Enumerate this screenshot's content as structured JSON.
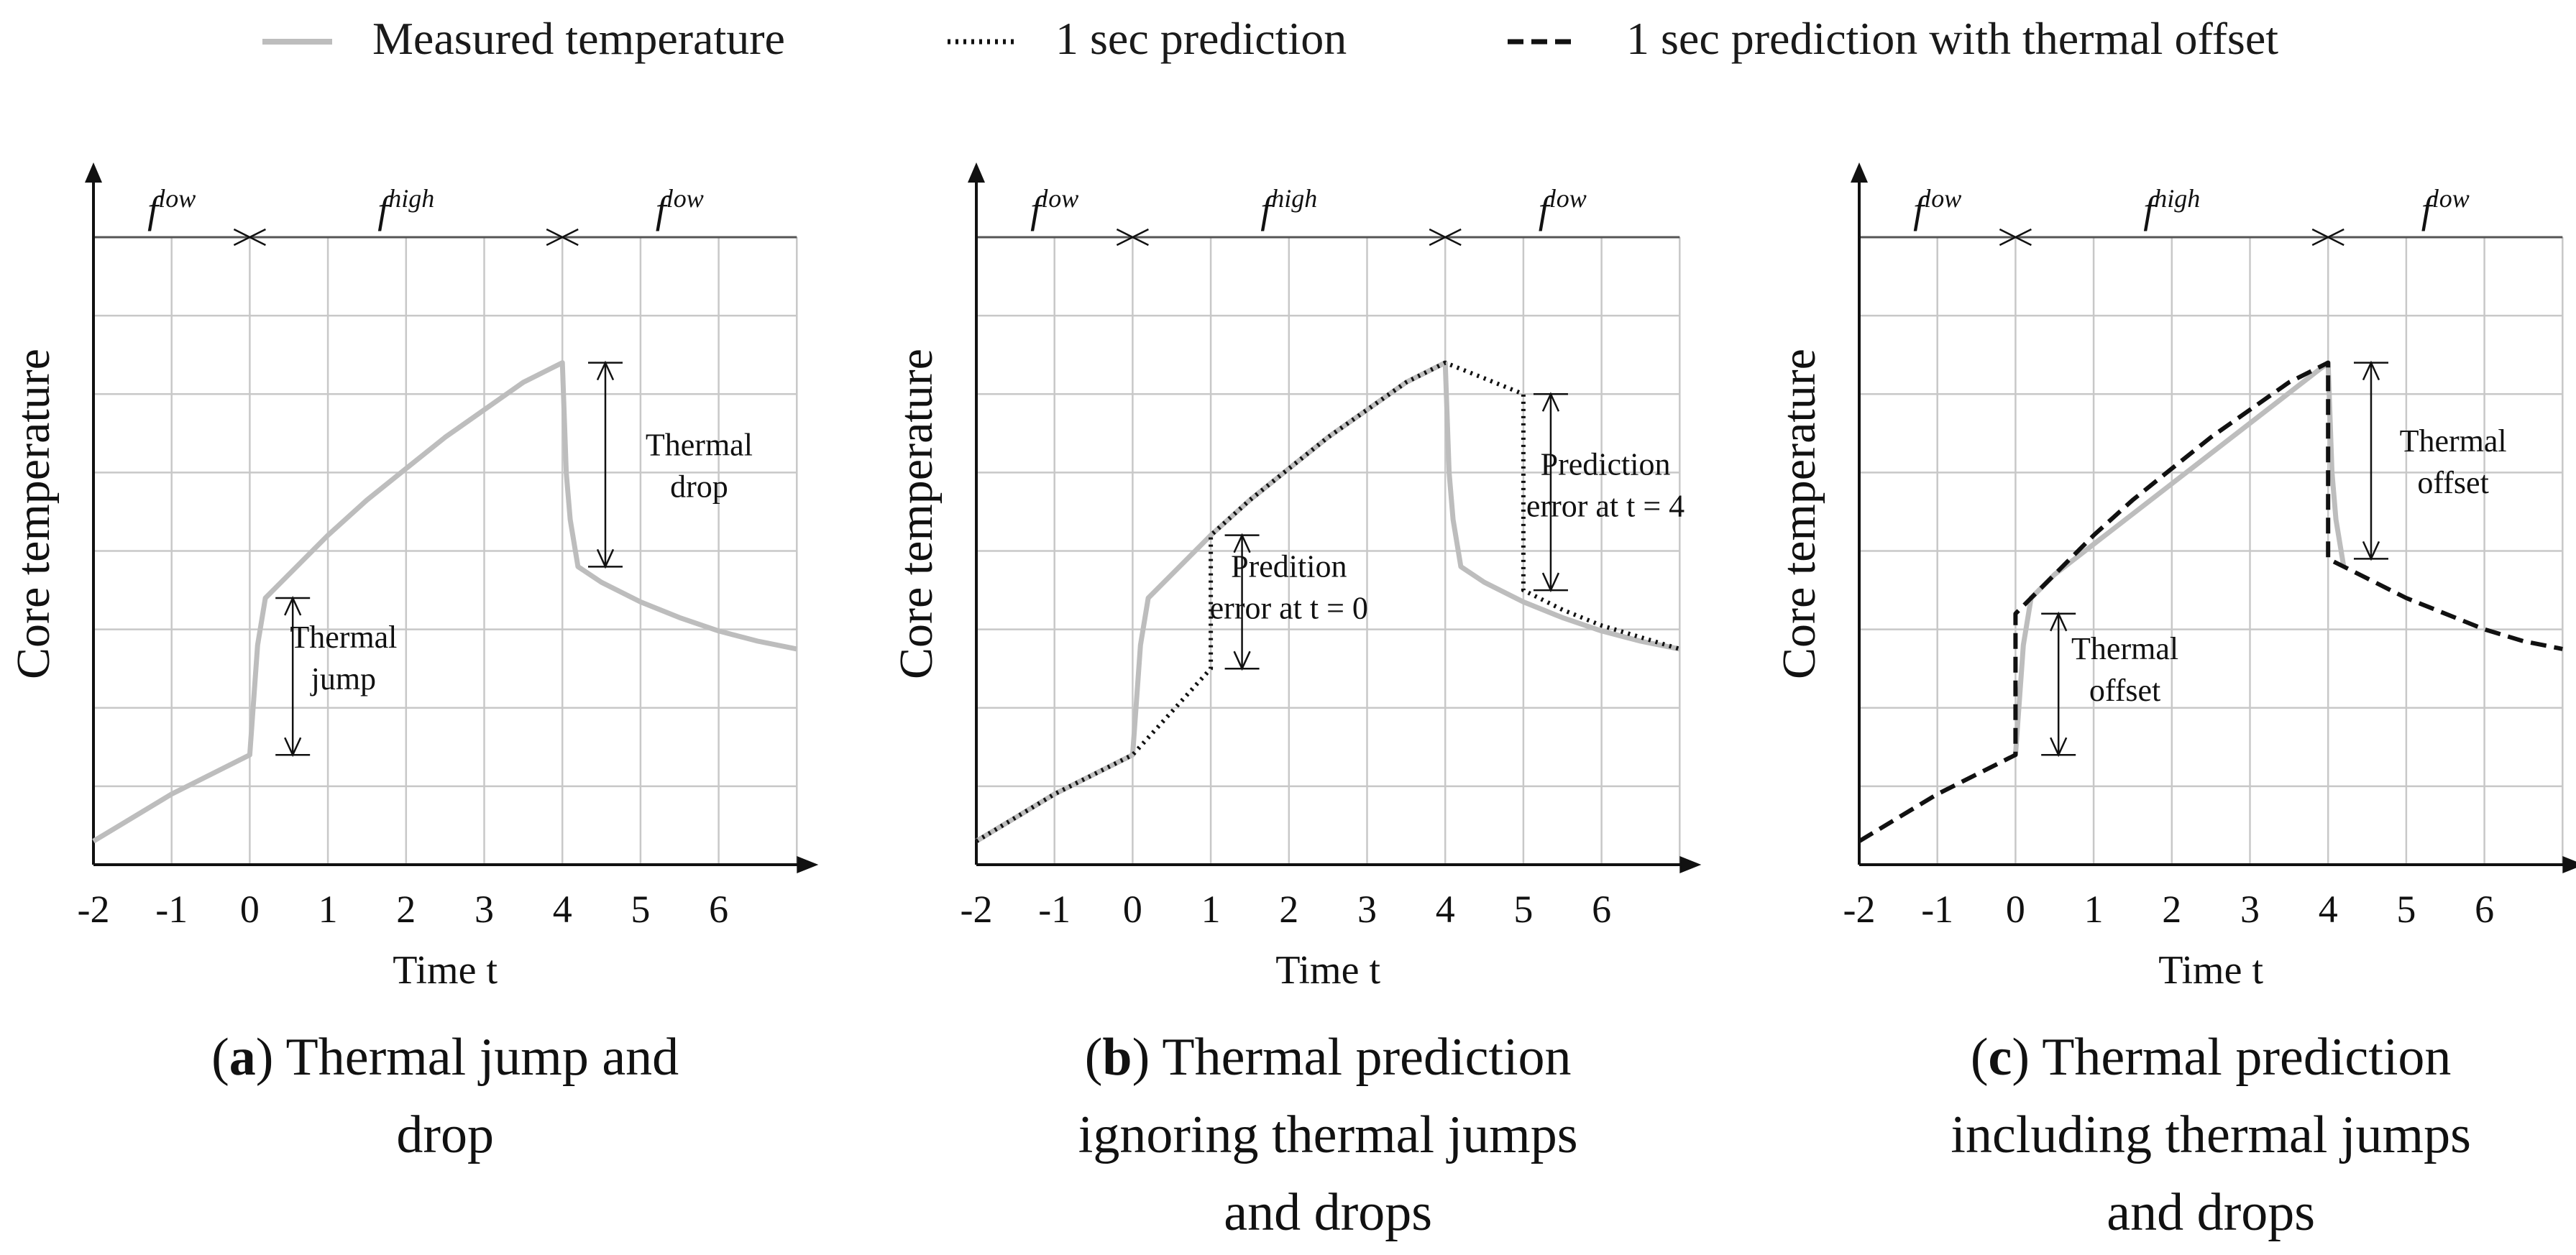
{
  "legend": [
    {
      "label": "Measured temperature",
      "style": "solid",
      "color": "#bdbdbd"
    },
    {
      "label": "1 sec prediction",
      "style": "dotted",
      "color": "#111111"
    },
    {
      "label": "1 sec prediction with thermal offset",
      "style": "dashed",
      "color": "#111111"
    }
  ],
  "chart_data": [
    {
      "type": "line",
      "id": "a",
      "caption_letter": "a",
      "caption_text": " Thermal jump and drop",
      "caption_lines": [
        [
          {
            "t": "(",
            "b": false
          },
          {
            "t": "a",
            "b": true
          },
          {
            "t": ") Thermal jump and",
            "b": false
          }
        ],
        [
          {
            "t": "drop",
            "b": false
          }
        ]
      ],
      "xlabel": "Time t",
      "ylabel": "Core temperature",
      "xticks": [
        "-2",
        "-1",
        "0",
        "1",
        "2",
        "3",
        "4",
        "5",
        "6"
      ],
      "xlim": [
        -2,
        7
      ],
      "ylim": [
        0,
        8
      ],
      "phases": [
        {
          "label": "f",
          "sup": "low",
          "from": -2,
          "to": 0
        },
        {
          "label": "f",
          "sup": "high",
          "from": 0,
          "to": 4
        },
        {
          "label": "f",
          "sup": "low",
          "from": 4,
          "to": 7
        }
      ],
      "series": [
        {
          "name": "Measured temperature",
          "style": "solid",
          "x": [
            -2,
            -1,
            0,
            0.1,
            0.2,
            0.5,
            1,
            1.5,
            2,
            2.5,
            3,
            3.5,
            4,
            4.05,
            4.1,
            4.2,
            4.5,
            5,
            5.5,
            6,
            6.5,
            7
          ],
          "y": [
            0.3,
            0.9,
            1.4,
            2.8,
            3.4,
            3.7,
            4.2,
            4.65,
            5.05,
            5.45,
            5.8,
            6.15,
            6.4,
            5.0,
            4.4,
            3.8,
            3.6,
            3.35,
            3.15,
            2.98,
            2.85,
            2.75
          ]
        }
      ],
      "annotations": [
        {
          "label": [
            "Thermal",
            "jump"
          ],
          "x": 0.55,
          "y_from": 1.4,
          "y_to": 3.4,
          "text_x": 1.2,
          "text_y": 2.65
        },
        {
          "label": [
            "Thermal",
            "drop"
          ],
          "x": 4.55,
          "y_from": 3.8,
          "y_to": 6.4,
          "text_x": 5.75,
          "text_y": 5.1
        }
      ]
    },
    {
      "type": "line",
      "id": "b",
      "caption_letter": "b",
      "caption_text": " Thermal prediction ignoring thermal jumps and drops",
      "caption_lines": [
        [
          {
            "t": "(",
            "b": false
          },
          {
            "t": "b",
            "b": true
          },
          {
            "t": ") Thermal prediction",
            "b": false
          }
        ],
        [
          {
            "t": "ignoring thermal jumps",
            "b": false
          }
        ],
        [
          {
            "t": "and drops",
            "b": false
          }
        ]
      ],
      "xlabel": "Time t",
      "ylabel": "Core temperature",
      "xticks": [
        "-2",
        "-1",
        "0",
        "1",
        "2",
        "3",
        "4",
        "5",
        "6"
      ],
      "xlim": [
        -2,
        7
      ],
      "ylim": [
        0,
        8
      ],
      "phases": [
        {
          "label": "f",
          "sup": "low",
          "from": -2,
          "to": 0
        },
        {
          "label": "f",
          "sup": "high",
          "from": 0,
          "to": 4
        },
        {
          "label": "f",
          "sup": "low",
          "from": 4,
          "to": 7
        }
      ],
      "series": [
        {
          "name": "Measured temperature",
          "style": "solid",
          "x": [
            -2,
            -1,
            0,
            0.1,
            0.2,
            0.5,
            1,
            1.5,
            2,
            2.5,
            3,
            3.5,
            4,
            4.05,
            4.1,
            4.2,
            4.5,
            5,
            5.5,
            6,
            6.5,
            7
          ],
          "y": [
            0.3,
            0.9,
            1.4,
            2.8,
            3.4,
            3.7,
            4.2,
            4.65,
            5.05,
            5.45,
            5.8,
            6.15,
            6.4,
            5.0,
            4.4,
            3.8,
            3.6,
            3.35,
            3.15,
            2.98,
            2.85,
            2.75
          ]
        },
        {
          "name": "1 sec prediction",
          "style": "dotted",
          "x": [
            -2,
            -1,
            0,
            0.5,
            1,
            1,
            1.5,
            2,
            2.5,
            3,
            3.5,
            4,
            4.5,
            5,
            5,
            5.5,
            6,
            6.5,
            7
          ],
          "y": [
            0.3,
            0.9,
            1.4,
            1.95,
            2.5,
            4.2,
            4.65,
            5.05,
            5.45,
            5.8,
            6.15,
            6.4,
            6.2,
            6.0,
            3.5,
            3.25,
            3.05,
            2.9,
            2.75
          ]
        }
      ],
      "annotations": [
        {
          "label": [
            "Predition",
            "error at t = 0"
          ],
          "x": 1.4,
          "y_from": 2.5,
          "y_to": 4.2,
          "text_x": 2.0,
          "text_y": 3.55
        },
        {
          "label": [
            "Prediction",
            "error at t = 4"
          ],
          "x": 5.35,
          "y_from": 3.5,
          "y_to": 6.0,
          "text_x": 6.05,
          "text_y": 4.85
        }
      ]
    },
    {
      "type": "line",
      "id": "c",
      "caption_letter": "c",
      "caption_text": " Thermal prediction including thermal jumps and drops",
      "caption_lines": [
        [
          {
            "t": "(",
            "b": false
          },
          {
            "t": "c",
            "b": true
          },
          {
            "t": ") Thermal prediction",
            "b": false
          }
        ],
        [
          {
            "t": "including thermal jumps",
            "b": false
          }
        ],
        [
          {
            "t": "and drops",
            "b": false
          }
        ]
      ],
      "xlabel": "Time t",
      "ylabel": "Core temperature",
      "xticks": [
        "-2",
        "-1",
        "0",
        "1",
        "2",
        "3",
        "4",
        "5",
        "6"
      ],
      "xlim": [
        -2,
        7
      ],
      "ylim": [
        0,
        8
      ],
      "phases": [
        {
          "label": "f",
          "sup": "low",
          "from": -2,
          "to": 0
        },
        {
          "label": "f",
          "sup": "high",
          "from": 0,
          "to": 4
        },
        {
          "label": "f",
          "sup": "low",
          "from": 4,
          "to": 7
        }
      ],
      "series": [
        {
          "name": "Measured temperature",
          "style": "solid",
          "x": [
            0,
            0.1,
            0.2,
            0.5,
            4,
            4.05,
            4.1,
            4.2
          ],
          "y": [
            1.4,
            2.8,
            3.4,
            3.7,
            6.4,
            5.0,
            4.4,
            3.8
          ]
        },
        {
          "name": "1 sec prediction with thermal offset",
          "style": "dashed",
          "x": [
            -2,
            -1,
            0,
            0,
            0.5,
            1,
            1.5,
            2,
            2.5,
            3,
            3.5,
            4,
            4,
            4.5,
            5,
            5.5,
            6,
            6.5,
            7
          ],
          "y": [
            0.3,
            0.9,
            1.4,
            3.2,
            3.7,
            4.2,
            4.65,
            5.05,
            5.45,
            5.8,
            6.15,
            6.4,
            3.9,
            3.65,
            3.4,
            3.2,
            3.0,
            2.85,
            2.75
          ]
        }
      ],
      "annotations": [
        {
          "label": [
            "Thermal",
            "offset"
          ],
          "x": 0.55,
          "y_from": 1.4,
          "y_to": 3.2,
          "text_x": 1.4,
          "text_y": 2.5
        },
        {
          "label": [
            "Thermal",
            "offset"
          ],
          "x": 4.55,
          "y_from": 3.9,
          "y_to": 6.4,
          "text_x": 5.6,
          "text_y": 5.15
        }
      ]
    }
  ]
}
